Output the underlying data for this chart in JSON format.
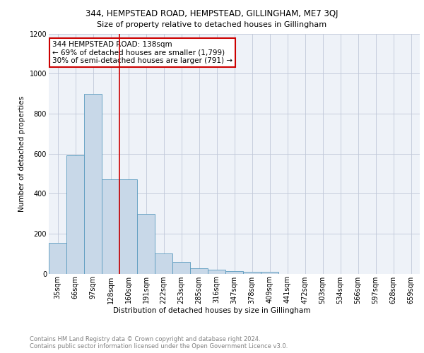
{
  "title1": "344, HEMPSTEAD ROAD, HEMPSTEAD, GILLINGHAM, ME7 3QJ",
  "title2": "Size of property relative to detached houses in Gillingham",
  "xlabel": "Distribution of detached houses by size in Gillingham",
  "ylabel": "Number of detached properties",
  "bar_labels": [
    "35sqm",
    "66sqm",
    "97sqm",
    "128sqm",
    "160sqm",
    "191sqm",
    "222sqm",
    "253sqm",
    "285sqm",
    "316sqm",
    "347sqm",
    "378sqm",
    "409sqm",
    "441sqm",
    "472sqm",
    "503sqm",
    "534sqm",
    "566sqm",
    "597sqm",
    "628sqm",
    "659sqm"
  ],
  "bar_values": [
    152,
    590,
    900,
    470,
    470,
    300,
    100,
    60,
    25,
    20,
    12,
    10,
    10,
    0,
    0,
    0,
    0,
    0,
    0,
    0,
    0
  ],
  "bar_color": "#c8d8e8",
  "bar_edge_color": "#5a9abf",
  "grid_color": "#c0c8d8",
  "bg_color": "#eef2f8",
  "redline_x": 3.5,
  "annotation_title": "344 HEMPSTEAD ROAD: 138sqm",
  "annotation_line1": "← 69% of detached houses are smaller (1,799)",
  "annotation_line2": "30% of semi-detached houses are larger (791) →",
  "annotation_box_color": "#ffffff",
  "annotation_edge_color": "#cc0000",
  "footer1": "Contains HM Land Registry data © Crown copyright and database right 2024.",
  "footer2": "Contains public sector information licensed under the Open Government Licence v3.0.",
  "ylim": [
    0,
    1200
  ],
  "yticks": [
    0,
    200,
    400,
    600,
    800,
    1000,
    1200
  ],
  "title1_fontsize": 8.5,
  "title2_fontsize": 8.0,
  "xlabel_fontsize": 7.5,
  "ylabel_fontsize": 7.5,
  "tick_fontsize": 7.0,
  "annotation_fontsize": 7.5,
  "footer_fontsize": 6.0
}
